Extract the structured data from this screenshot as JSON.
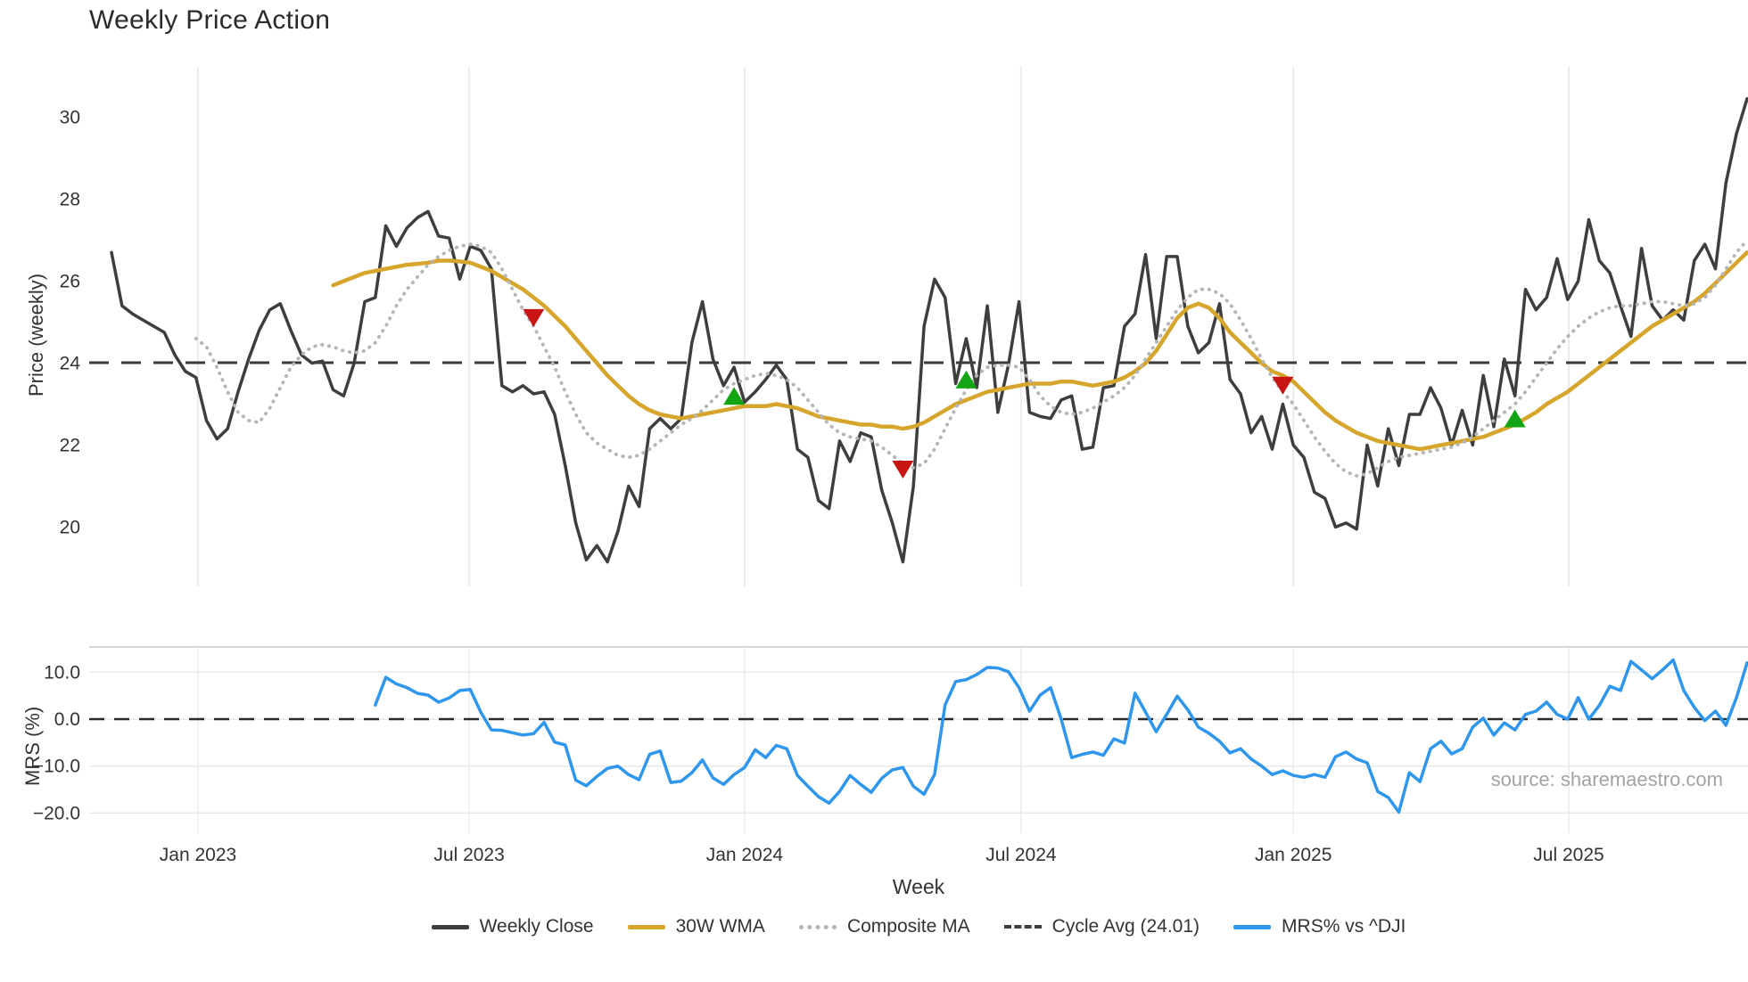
{
  "title": "Weekly Price Action",
  "source_note": "source: sharemaestro.com",
  "axes": {
    "price_label": "Price (weekly)",
    "mrs_label": "MRS (%)",
    "x_label": "Week",
    "price_ticks": [
      30,
      28,
      26,
      24,
      22,
      20
    ],
    "mrs_ticks": [
      "10.0",
      "0.0",
      "−10.0",
      "−20.0"
    ],
    "mrs_tick_values": [
      10,
      0,
      -10,
      -20
    ],
    "x_ticks": [
      "Jan 2023",
      "Jul 2023",
      "Jan 2024",
      "Jul 2024",
      "Jan 2025",
      "Jul 2025"
    ]
  },
  "legend": {
    "items": [
      {
        "label": "Weekly Close",
        "style": "solid",
        "color": "#3e3e3e"
      },
      {
        "label": "30W WMA",
        "style": "solid",
        "color": "#d6a62c"
      },
      {
        "label": "Composite MA",
        "style": "dotted",
        "color": "#b5b5b5"
      },
      {
        "label": "Cycle Avg (24.01)",
        "style": "dashed",
        "color": "#3e3e3e"
      },
      {
        "label": "MRS% vs ^DJI",
        "style": "solid",
        "color": "#2e96ec"
      }
    ]
  },
  "chart_data": {
    "type": "line",
    "x_unit": "week",
    "title": "Weekly Price Action",
    "cycle_avg": 24.01,
    "price_ylim": [
      18.8,
      31.0
    ],
    "mrs_ylim": [
      -22,
      14
    ],
    "x_tick_weeks": [
      8.2,
      33.9,
      60.0,
      86.2,
      112.0,
      138.1
    ],
    "grid": true,
    "legend_position": "bottom",
    "series": [
      {
        "name": "Weekly Close",
        "color": "#3e3e3e",
        "width": 3.5,
        "dash": "solid",
        "panel": "price",
        "start_week": 0,
        "values": [
          26.7,
          25.4,
          25.2,
          25.05,
          24.9,
          24.75,
          24.2,
          23.8,
          23.65,
          22.6,
          22.15,
          22.4,
          23.3,
          24.1,
          24.8,
          25.3,
          25.45,
          24.8,
          24.2,
          24.0,
          24.05,
          23.35,
          23.2,
          24.0,
          25.5,
          25.6,
          27.35,
          26.85,
          27.3,
          27.55,
          27.7,
          27.1,
          27.05,
          26.05,
          26.85,
          26.75,
          26.3,
          23.45,
          23.3,
          23.45,
          23.25,
          23.3,
          22.75,
          21.5,
          20.1,
          19.2,
          19.55,
          19.15,
          19.9,
          21.0,
          20.5,
          22.4,
          22.65,
          22.4,
          22.65,
          24.5,
          25.5,
          24.1,
          23.45,
          23.9,
          23.05,
          23.3,
          23.6,
          23.95,
          23.6,
          21.9,
          21.7,
          20.65,
          20.45,
          22.1,
          21.6,
          22.3,
          22.2,
          20.9,
          20.1,
          19.15,
          21.0,
          24.9,
          26.05,
          25.6,
          23.5,
          24.6,
          23.4,
          25.4,
          22.8,
          23.95,
          25.5,
          22.8,
          22.7,
          22.65,
          23.1,
          23.2,
          21.9,
          21.95,
          23.4,
          23.45,
          24.9,
          25.2,
          26.65,
          24.6,
          26.6,
          26.6,
          24.9,
          24.25,
          24.5,
          25.45,
          23.6,
          23.25,
          22.3,
          22.7,
          21.9,
          23.0,
          22.0,
          21.7,
          20.85,
          20.7,
          20.0,
          20.1,
          19.95,
          22.0,
          21.0,
          22.4,
          21.5,
          22.75,
          22.75,
          23.4,
          22.9,
          22.0,
          22.85,
          22.0,
          23.7,
          22.45,
          24.1,
          23.2,
          25.8,
          25.3,
          25.6,
          26.55,
          25.55,
          26.0,
          27.5,
          26.5,
          26.2,
          25.4,
          24.65,
          26.8,
          25.4,
          25.05,
          25.3,
          25.05,
          26.5,
          26.9,
          26.3,
          28.4,
          29.6,
          30.45
        ]
      },
      {
        "name": "30W WMA",
        "color": "#d6a62c",
        "width": 4.5,
        "dash": "solid",
        "panel": "price",
        "start_week": 21,
        "values": [
          25.9,
          26.0,
          26.1,
          26.2,
          26.25,
          26.3,
          26.35,
          26.4,
          26.42,
          26.45,
          26.5,
          26.5,
          26.48,
          26.45,
          26.35,
          26.25,
          26.1,
          25.95,
          25.8,
          25.6,
          25.4,
          25.15,
          24.9,
          24.6,
          24.3,
          24.0,
          23.7,
          23.45,
          23.2,
          23.0,
          22.85,
          22.75,
          22.7,
          22.65,
          22.7,
          22.75,
          22.8,
          22.85,
          22.9,
          22.95,
          22.95,
          22.95,
          23.0,
          22.95,
          22.9,
          22.8,
          22.7,
          22.65,
          22.6,
          22.55,
          22.5,
          22.5,
          22.45,
          22.45,
          22.4,
          22.45,
          22.55,
          22.7,
          22.85,
          23.0,
          23.1,
          23.2,
          23.3,
          23.35,
          23.4,
          23.45,
          23.5,
          23.5,
          23.5,
          23.55,
          23.55,
          23.5,
          23.45,
          23.5,
          23.55,
          23.65,
          23.8,
          24.0,
          24.3,
          24.7,
          25.1,
          25.35,
          25.45,
          25.35,
          25.1,
          24.75,
          24.5,
          24.25,
          24.0,
          23.8,
          23.7,
          23.55,
          23.3,
          23.05,
          22.8,
          22.6,
          22.45,
          22.3,
          22.2,
          22.1,
          22.05,
          22.0,
          21.95,
          21.9,
          21.95,
          22.0,
          22.05,
          22.1,
          22.15,
          22.2,
          22.3,
          22.4,
          22.5,
          22.65,
          22.8,
          23.0,
          23.15,
          23.3,
          23.5,
          23.7,
          23.9,
          24.1,
          24.3,
          24.5,
          24.7,
          24.9,
          25.05,
          25.2,
          25.35,
          25.5,
          25.7,
          25.95,
          26.2,
          26.45,
          26.7
        ]
      },
      {
        "name": "Composite MA",
        "color": "#b5b5b5",
        "width": 3.2,
        "dash": "dot",
        "panel": "price",
        "start_week": 8,
        "values": [
          24.6,
          24.4,
          23.9,
          23.3,
          22.8,
          22.6,
          22.55,
          22.9,
          23.4,
          23.9,
          24.2,
          24.4,
          24.45,
          24.4,
          24.3,
          24.25,
          24.3,
          24.5,
          24.9,
          25.4,
          25.8,
          26.1,
          26.4,
          26.6,
          26.75,
          26.85,
          26.9,
          26.85,
          26.7,
          26.3,
          25.8,
          25.3,
          24.9,
          24.4,
          23.9,
          23.3,
          22.75,
          22.3,
          22.05,
          21.9,
          21.75,
          21.7,
          21.75,
          21.9,
          22.1,
          22.3,
          22.5,
          22.65,
          22.85,
          23.1,
          23.35,
          23.5,
          23.6,
          23.7,
          23.75,
          23.7,
          23.6,
          23.4,
          23.1,
          22.8,
          22.5,
          22.3,
          22.2,
          22.15,
          22.1,
          21.95,
          21.75,
          21.55,
          21.45,
          21.55,
          21.9,
          22.4,
          22.9,
          23.35,
          23.7,
          23.9,
          23.95,
          23.95,
          23.9,
          23.6,
          23.2,
          22.95,
          22.8,
          22.75,
          22.8,
          22.9,
          23.05,
          23.2,
          23.4,
          23.7,
          24.1,
          24.5,
          24.9,
          25.3,
          25.6,
          25.8,
          25.8,
          25.7,
          25.45,
          25.05,
          24.6,
          24.1,
          23.65,
          23.3,
          23.0,
          22.6,
          22.2,
          21.85,
          21.55,
          21.35,
          21.25,
          21.3,
          21.45,
          21.6,
          21.7,
          21.75,
          21.8,
          21.85,
          21.9,
          21.95,
          22.05,
          22.2,
          22.4,
          22.6,
          22.8,
          23.0,
          23.3,
          23.65,
          24.0,
          24.35,
          24.65,
          24.9,
          25.1,
          25.25,
          25.35,
          25.4,
          25.4,
          25.45,
          25.5,
          25.5,
          25.45,
          25.4,
          25.45,
          25.6,
          25.9,
          26.3,
          26.7,
          27.0
        ]
      },
      {
        "name": "MRS% vs ^DJI",
        "color": "#2e96ec",
        "width": 3.5,
        "dash": "solid",
        "panel": "mrs",
        "start_week": 25,
        "values": [
          3.0,
          8.9,
          7.5,
          6.7,
          5.5,
          5.1,
          3.6,
          4.5,
          6.1,
          6.3,
          1.5,
          -2.3,
          -2.4,
          -2.9,
          -3.4,
          -3.1,
          -0.7,
          -4.9,
          -5.5,
          -13.0,
          -14.2,
          -12.2,
          -10.5,
          -10.0,
          -11.8,
          -12.9,
          -7.5,
          -6.8,
          -13.5,
          -13.2,
          -11.4,
          -8.7,
          -12.5,
          -13.9,
          -11.8,
          -10.3,
          -6.5,
          -8.2,
          -5.6,
          -6.3,
          -12.0,
          -14.3,
          -16.5,
          -17.9,
          -15.4,
          -12.0,
          -13.9,
          -15.6,
          -12.6,
          -10.8,
          -10.3,
          -14.3,
          -16.0,
          -11.8,
          3.0,
          8.0,
          8.4,
          9.5,
          11.0,
          10.9,
          10.1,
          6.7,
          1.7,
          5.1,
          6.7,
          0.0,
          -8.2,
          -7.5,
          -7.0,
          -7.7,
          -4.2,
          -5.1,
          5.5,
          1.5,
          -2.7,
          1.0,
          4.9,
          2.0,
          -1.7,
          -3.0,
          -4.7,
          -7.2,
          -6.3,
          -8.5,
          -10.0,
          -11.8,
          -11.0,
          -12.0,
          -12.4,
          -11.8,
          -12.4,
          -8.0,
          -7.0,
          -8.5,
          -9.3,
          -15.4,
          -16.7,
          -19.8,
          -11.4,
          -13.3,
          -6.3,
          -4.7,
          -7.4,
          -6.3,
          -1.7,
          0.2,
          -3.4,
          -0.8,
          -2.3,
          1.0,
          1.7,
          3.6,
          1.0,
          0.0,
          4.6,
          0.0,
          2.9,
          7.0,
          6.1,
          12.3,
          10.5,
          8.6,
          10.5,
          12.6,
          6.1,
          2.5,
          -0.3,
          1.7,
          -1.3,
          4.6,
          12.0
        ]
      }
    ],
    "markers": [
      {
        "signal": "sell",
        "week": 40,
        "value": 25.1,
        "color": "#c91414"
      },
      {
        "signal": "buy",
        "week": 59,
        "value": 23.2,
        "color": "#13a513"
      },
      {
        "signal": "sell",
        "week": 75,
        "value": 21.4,
        "color": "#c91414"
      },
      {
        "signal": "buy",
        "week": 81,
        "value": 23.6,
        "color": "#13a513"
      },
      {
        "signal": "sell",
        "week": 111,
        "value": 23.45,
        "color": "#c91414"
      },
      {
        "signal": "buy",
        "week": 133,
        "value": 22.65,
        "color": "#13a513"
      }
    ]
  },
  "colors": {
    "grid": "#ececec",
    "mrs_grid": "#e8e8e8",
    "panel_divider": "#d8d8d8",
    "dash_line": "#3a3a3a",
    "tick_text": "#333333"
  }
}
